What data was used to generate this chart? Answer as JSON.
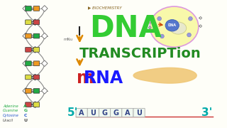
{
  "bg_color": "#fefef8",
  "title_dna": "DNA",
  "title_transcription": "TRANSCRIPTion",
  "five_prime": "5'",
  "three_prime": "3'",
  "codons": [
    "A",
    "U",
    "G",
    "G",
    "A",
    "U"
  ],
  "dna_color": "#33cc33",
  "transcription_color": "#228B22",
  "mrna_m_color": "#cc2222",
  "mrna_rna_color": "#1a1aff",
  "arrow_color": "#dd8800",
  "strand_line_color": "#cc3333",
  "prime_color": "#00aaaa",
  "cell_fill": "#f8f8aa",
  "cell_border": "#dd99dd",
  "nucleus_fill": "#5577cc",
  "nucleus_border": "#4466bb",
  "pancreas_color": "#f0c878",
  "helix_strand_color": "#888888",
  "helix_box_colors": [
    "#22aa44",
    "#dddd44",
    "#ee9922",
    "#cc4444"
  ],
  "biochem_color": "#886622",
  "legend_items": [
    {
      "name": "Adenine",
      "letter": "A",
      "name_color": "#22aa44",
      "letter_color": "#22aa44"
    },
    {
      "name": "Guanine",
      "letter": "G",
      "name_color": "#22aa44",
      "letter_color": "#22aa44"
    },
    {
      "name": "Cytosine",
      "letter": "C",
      "name_color": "#2255cc",
      "letter_color": "#2255cc"
    },
    {
      "name": "Uracil",
      "letter": "U",
      "name_color": "#444444",
      "letter_color": "#444444"
    }
  ]
}
